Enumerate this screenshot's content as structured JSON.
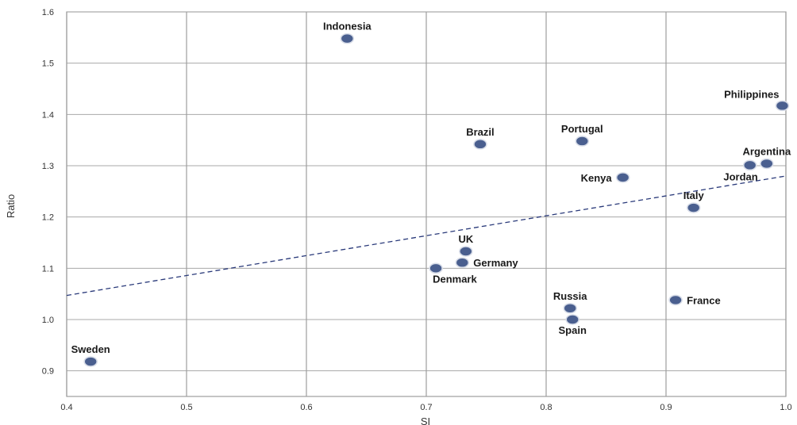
{
  "chart_data": {
    "type": "scatter",
    "title": "",
    "xlabel": "SI",
    "ylabel": "Ratio",
    "xlim": [
      0.4,
      1.0
    ],
    "ylim": [
      0.85,
      1.6
    ],
    "xticks": [
      "0.4",
      "0.5",
      "0.6",
      "0.7",
      "0.8",
      "0.9",
      "1.0"
    ],
    "yticks": [
      "0.9",
      "1.0",
      "1.1",
      "1.2",
      "1.3",
      "1.4",
      "1.5",
      "1.6"
    ],
    "grid": true,
    "point_color": "#4a5f8f",
    "trendline": {
      "style": "dashed",
      "color": "#2a3a7a",
      "x": [
        0.4,
        1.0
      ],
      "y": [
        1.047,
        1.28
      ]
    },
    "points": [
      {
        "label": "Indonesia",
        "x": 0.634,
        "y": 1.548,
        "label_pos": "above"
      },
      {
        "label": "Philippines",
        "x": 0.997,
        "y": 1.417,
        "label_pos": "above-left"
      },
      {
        "label": "Brazil",
        "x": 0.745,
        "y": 1.342,
        "label_pos": "above"
      },
      {
        "label": "Portugal",
        "x": 0.83,
        "y": 1.348,
        "label_pos": "above"
      },
      {
        "label": "Argentina",
        "x": 0.984,
        "y": 1.304,
        "label_pos": "above"
      },
      {
        "label": "Jordan",
        "x": 0.97,
        "y": 1.301,
        "label_pos": "below-left"
      },
      {
        "label": "Kenya",
        "x": 0.864,
        "y": 1.277,
        "label_pos": "left"
      },
      {
        "label": "Italy",
        "x": 0.923,
        "y": 1.218,
        "label_pos": "above"
      },
      {
        "label": "UK",
        "x": 0.733,
        "y": 1.133,
        "label_pos": "above"
      },
      {
        "label": "Germany",
        "x": 0.73,
        "y": 1.111,
        "label_pos": "right"
      },
      {
        "label": "Denmark",
        "x": 0.708,
        "y": 1.1,
        "label_pos": "below-right"
      },
      {
        "label": "Russia",
        "x": 0.82,
        "y": 1.022,
        "label_pos": "above"
      },
      {
        "label": "Spain",
        "x": 0.822,
        "y": 1.0,
        "label_pos": "below"
      },
      {
        "label": "France",
        "x": 0.908,
        "y": 1.038,
        "label_pos": "right"
      },
      {
        "label": "Sweden",
        "x": 0.42,
        "y": 0.918,
        "label_pos": "above"
      }
    ]
  }
}
